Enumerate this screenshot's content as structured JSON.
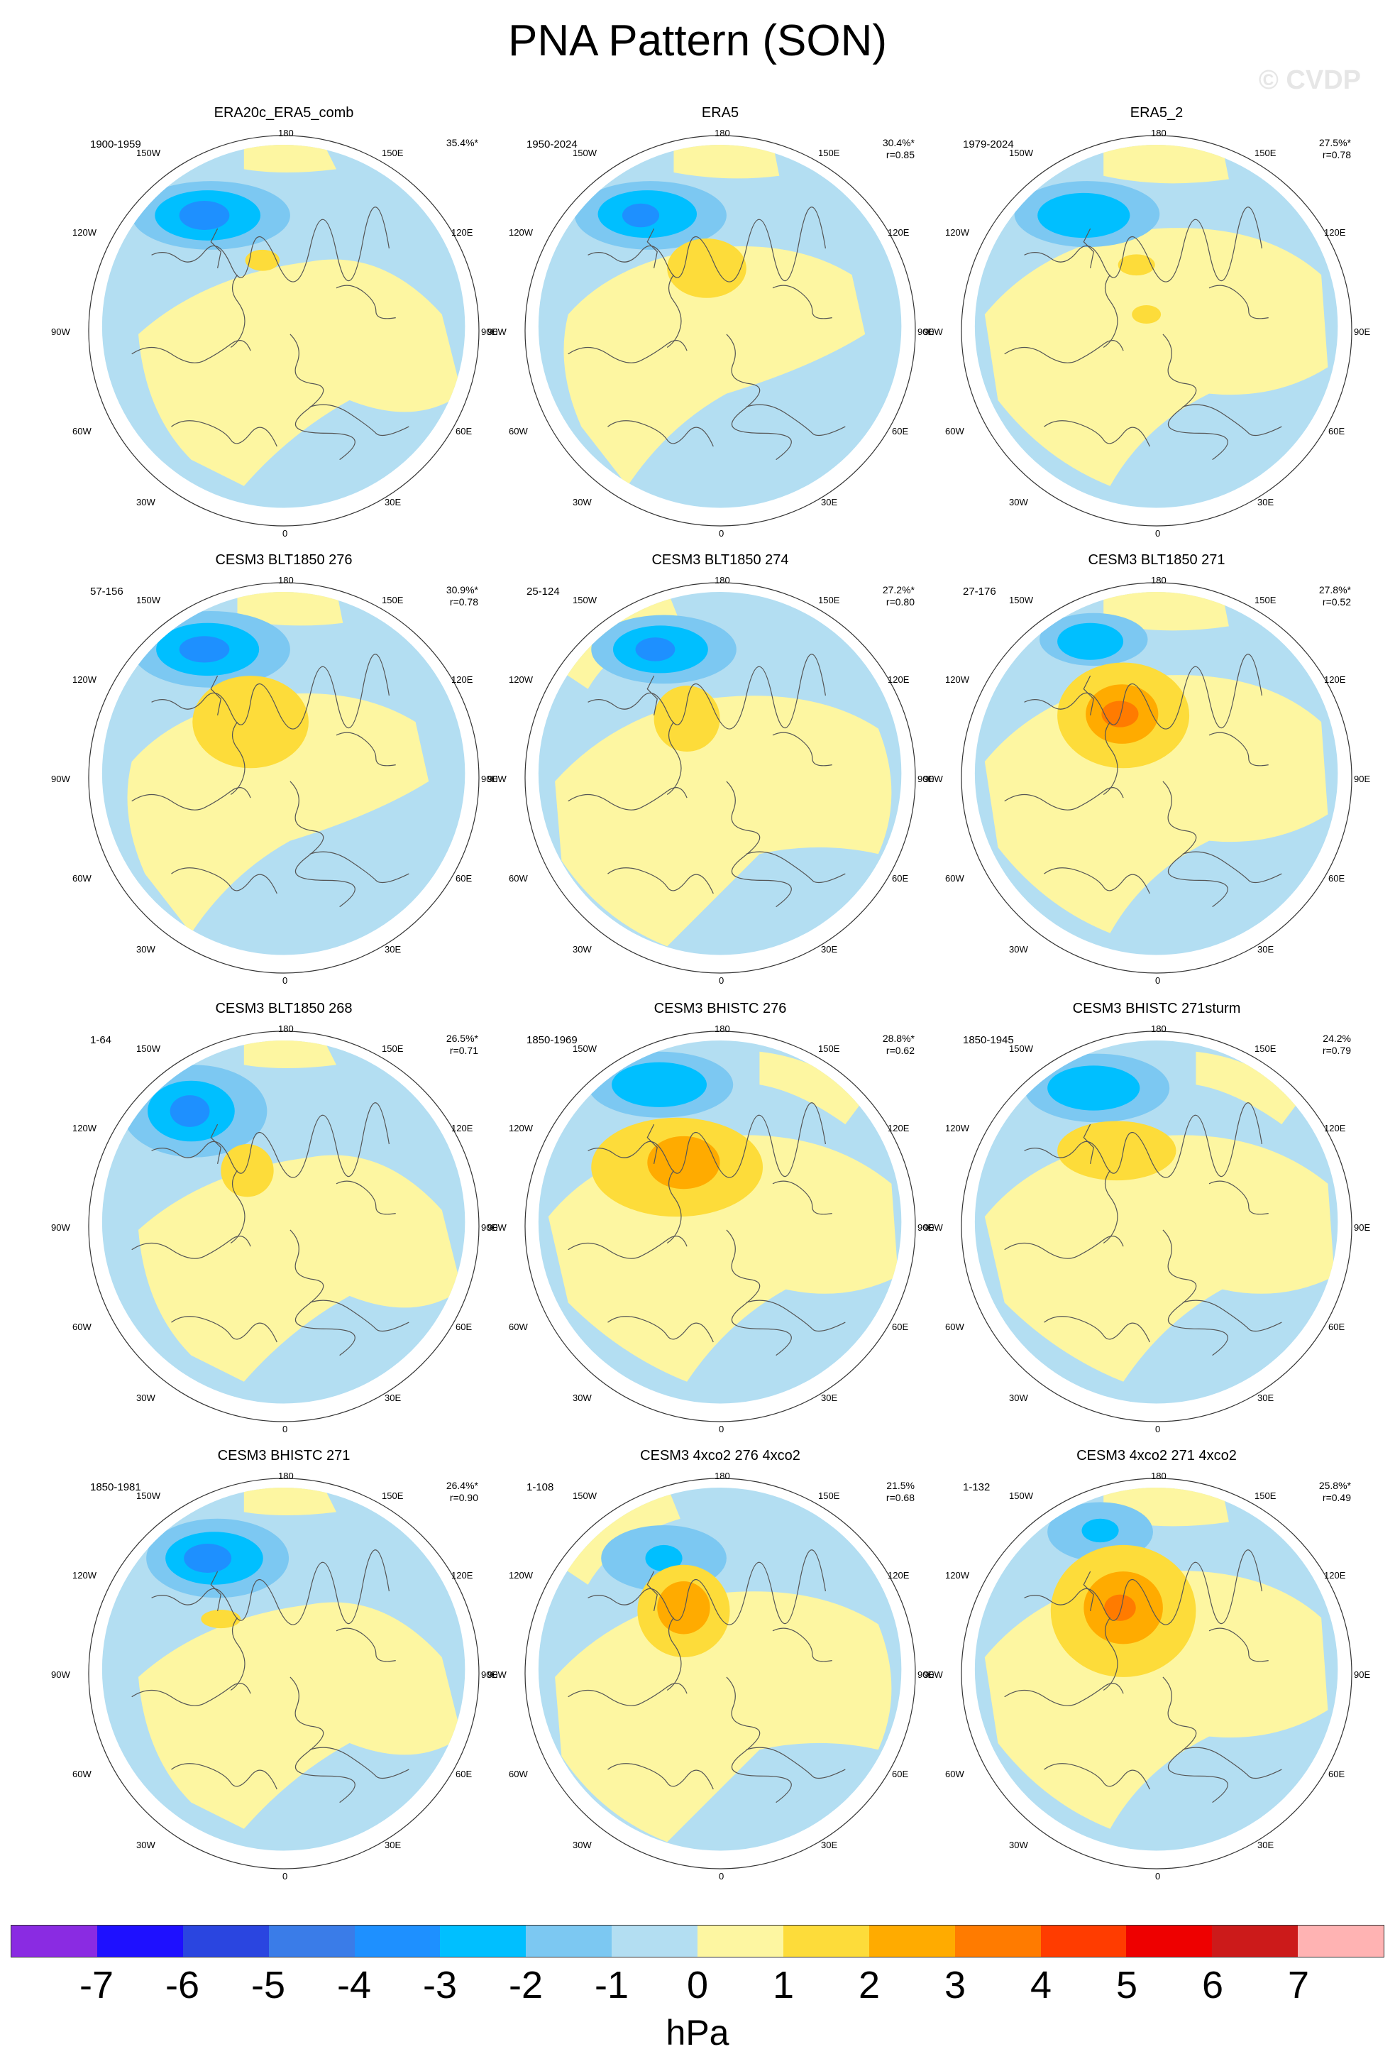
{
  "title": "PNA Pattern (SON)",
  "watermark": "© CVDP",
  "lon_labels": {
    "top": "180",
    "l150": "150W",
    "r150": "150E",
    "l120": "120W",
    "r120": "120E",
    "l90": "90W",
    "r90": "90E",
    "l60": "60W",
    "r60": "60E",
    "l30": "30W",
    "r30": "30E",
    "bottom": "0"
  },
  "colors": {
    "land_outline": "#555555",
    "ocean_neg1": "#b3def2",
    "pos1": "#fdf6a1"
  },
  "panels": [
    {
      "title": "ERA20c_ERA5_comb",
      "period": "1900-1959",
      "pct": "35.4%*",
      "r": ""
    },
    {
      "title": "ERA5",
      "period": "1950-2024",
      "pct": "30.4%*",
      "r": "r=0.85"
    },
    {
      "title": "ERA5_2",
      "period": "1979-2024",
      "pct": "27.5%*",
      "r": "r=0.78"
    },
    {
      "title": "CESM3 BLT1850 276",
      "period": "57-156",
      "pct": "30.9%*",
      "r": "r=0.78"
    },
    {
      "title": "CESM3 BLT1850 274",
      "period": "25-124",
      "pct": "27.2%*",
      "r": "r=0.80"
    },
    {
      "title": "CESM3 BLT1850 271",
      "period": "27-176",
      "pct": "27.8%*",
      "r": "r=0.52"
    },
    {
      "title": "CESM3 BLT1850 268",
      "period": "1-64",
      "pct": "26.5%*",
      "r": "r=0.71"
    },
    {
      "title": "CESM3 BHISTC 276",
      "period": "1850-1969",
      "pct": "28.8%*",
      "r": "r=0.62"
    },
    {
      "title": "CESM3 BHISTC 271sturm",
      "period": "1850-1945",
      "pct": "24.2%",
      "r": "r=0.79"
    },
    {
      "title": "CESM3 BHISTC 271",
      "period": "1850-1981",
      "pct": "26.4%*",
      "r": "r=0.90"
    },
    {
      "title": "CESM3 4xco2 276 4xco2",
      "period": "1-108",
      "pct": "21.5%",
      "r": "r=0.68"
    },
    {
      "title": "CESM3 4xco2 271 4xco2",
      "period": "1-132",
      "pct": "25.8%*",
      "r": "r=0.49"
    }
  ],
  "colorbar": {
    "unit": "hPa",
    "labels": [
      "-7",
      "-6",
      "-5",
      "-4",
      "-3",
      "-2",
      "-1",
      "0",
      "1",
      "2",
      "3",
      "4",
      "5",
      "6",
      "7"
    ],
    "colors": [
      "#8a2be2",
      "#1e10ff",
      "#2a45e0",
      "#3a7ce8",
      "#1e90ff",
      "#00bfff",
      "#7cc8f2",
      "#b3def2",
      "#fdf6a1",
      "#fddc3a",
      "#ffab00",
      "#ff7b00",
      "#ff3c00",
      "#ee0000",
      "#cc1a1a",
      "#ffb3b3"
    ]
  }
}
